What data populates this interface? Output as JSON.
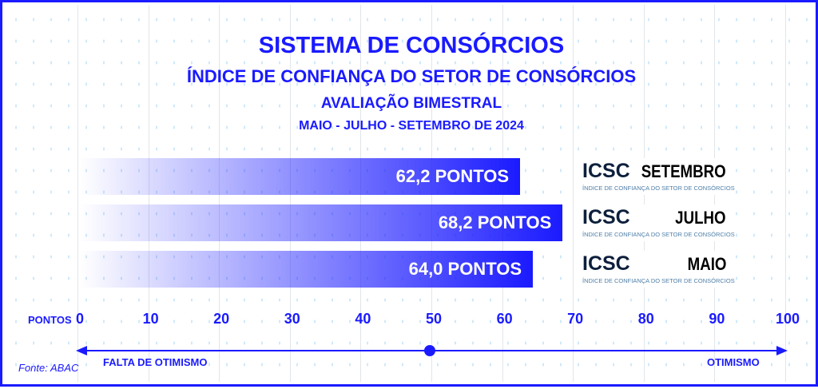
{
  "header": {
    "title": "SISTEMA DE CONSÓRCIOS",
    "subtitle": "ÍNDICE DE CONFIANÇA DO SETOR DE CONSÓRCIOS",
    "subtitle2": "AVALIAÇÃO BIMESTRAL",
    "period": "MAIO - JULHO - SETEMBRO DE 2024"
  },
  "chart_data": {
    "type": "bar",
    "orientation": "horizontal",
    "title": "ÍNDICE DE CONFIANÇA DO SETOR DE CONSÓRCIOS",
    "categories": [
      "SETEMBRO",
      "JULHO",
      "MAIO"
    ],
    "values": [
      62.2,
      68.2,
      64.0
    ],
    "data_labels": [
      "62,2 PONTOS",
      "68,2 PONTOS",
      "64,0 PONTOS"
    ],
    "xlabel": "PONTOS",
    "xlim": [
      0,
      100
    ],
    "xticks": [
      "0",
      "10",
      "20",
      "30",
      "40",
      "50",
      "60",
      "70",
      "80",
      "90",
      "100"
    ],
    "bar_color": "#1a1aff"
  },
  "legend": {
    "brand": "ICSC",
    "brand_sub": "ÍNDICE DE CONFIANÇA DO SETOR DE CONSÓRCIOS"
  },
  "scale": {
    "left_label": "FALTA DE OTIMISMO",
    "right_label": "OTIMISMO",
    "midpoint": 50
  },
  "source": "Fonte: ABAC"
}
